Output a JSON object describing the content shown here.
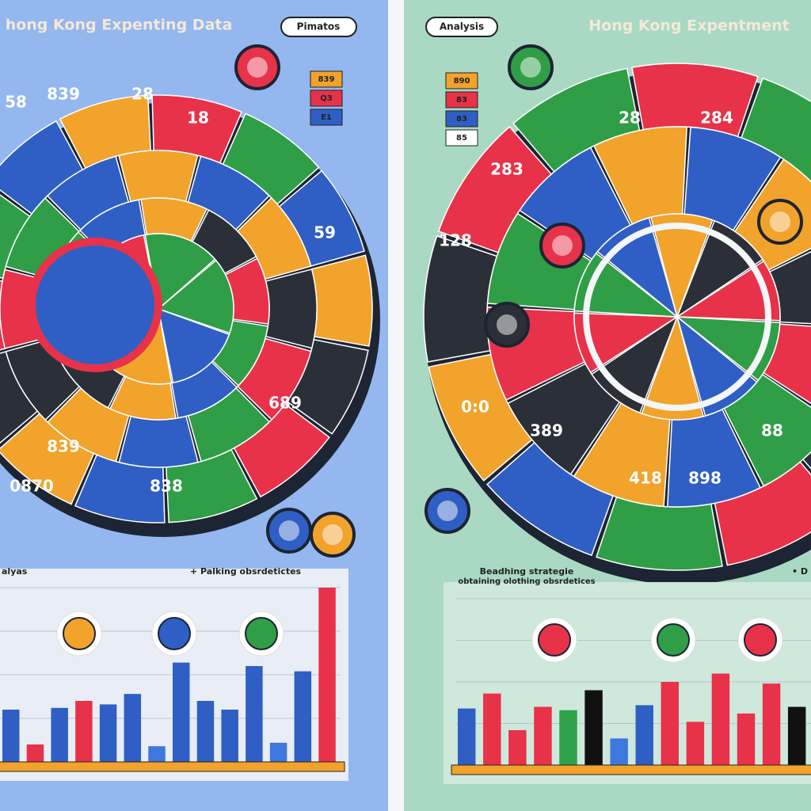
{
  "left": {
    "title": "hong Kong Expenting Data",
    "badge": "Pimatos",
    "legend": [
      "839",
      "Q3",
      "E1"
    ],
    "wheel_labels": [
      "58",
      "839",
      "28",
      "18",
      "59",
      "839",
      "838",
      "0870",
      "689"
    ],
    "caption_left": "alyas",
    "caption": "+ Palking obsrdetictes",
    "bars": {
      "values": [
        30,
        10,
        31,
        35,
        33,
        39,
        9,
        57,
        35,
        30,
        55,
        11,
        52,
        100
      ],
      "colors": [
        "#2f5fc4",
        "#e8324a",
        "#2f5fc4",
        "#e8324a",
        "#2f5fc4",
        "#2f5fc4",
        "#3e78dd",
        "#2f5fc4",
        "#2f5fc4",
        "#2f5fc4",
        "#2f5fc4",
        "#3e78dd",
        "#2f5fc4",
        "#e8324a"
      ]
    }
  },
  "right": {
    "title": "Hong Kong Expentment",
    "badge": "Analysis",
    "legend": [
      "890",
      "83",
      "83",
      "85"
    ],
    "wheel_labels": [
      "28",
      "284",
      "283",
      "128",
      "0:0",
      "389",
      "418",
      "898",
      "88"
    ],
    "caption": "Beadhing strategie",
    "caption_sub": "obtaining olothing obsrdetices",
    "caption_right": "• D",
    "bars": {
      "values": [
        34,
        43,
        21,
        35,
        33,
        45,
        16,
        36,
        50,
        26,
        55,
        31,
        49,
        35
      ],
      "colors": [
        "#2f5fc4",
        "#e8324a",
        "#e8324a",
        "#e8324a",
        "#2fa34a",
        "#111",
        "#3e78dd",
        "#2f5fc4",
        "#e8324a",
        "#e8324a",
        "#e8324a",
        "#e8324a",
        "#e8324a",
        "#111"
      ]
    }
  }
}
